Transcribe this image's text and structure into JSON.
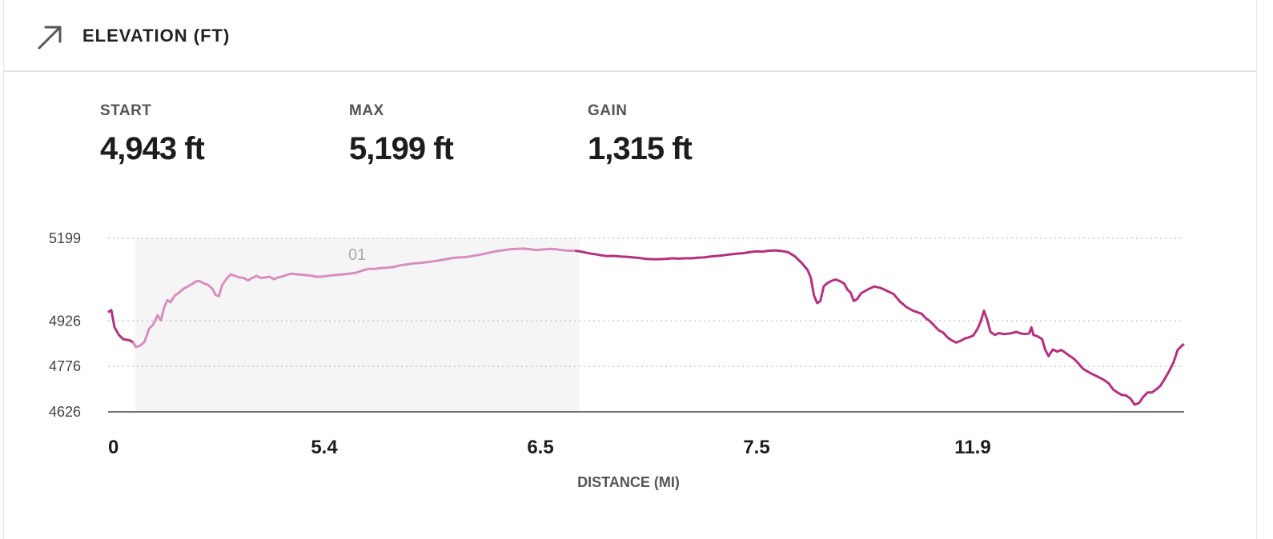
{
  "header": {
    "title": "ELEVATION (FT)",
    "icon": "arrow-up-right-icon"
  },
  "stats": [
    {
      "label": "START",
      "value": "4,943 ft"
    },
    {
      "label": "MAX",
      "value": "5,199 ft"
    },
    {
      "label": "GAIN",
      "value": "1,315 ft"
    }
  ],
  "colors": {
    "line": "#b5307f",
    "highlight": "#d98ec0",
    "band": "#f5f5f5"
  },
  "chart_data": {
    "type": "line",
    "title": "",
    "xlabel": "DISTANCE (MI)",
    "ylabel": "",
    "y_ticks": [
      5199,
      4926,
      4776,
      4626
    ],
    "x_tick_labels": [
      "0",
      "5.4",
      "6.5",
      "7.5",
      "11.9"
    ],
    "ylim": [
      4626,
      5199
    ],
    "highlighted_segment": {
      "label": "01",
      "from_fraction": 0.025,
      "to_fraction": 0.438
    },
    "grid": "dotted horizontal at y ticks",
    "series": [
      {
        "values_by_fraction": [
          [
            0.0,
            4955
          ],
          [
            0.003,
            4962
          ],
          [
            0.006,
            4905
          ],
          [
            0.01,
            4880
          ],
          [
            0.014,
            4866
          ],
          [
            0.02,
            4862
          ],
          [
            0.023,
            4856
          ],
          [
            0.026,
            4840
          ],
          [
            0.03,
            4845
          ],
          [
            0.034,
            4858
          ],
          [
            0.038,
            4900
          ],
          [
            0.042,
            4915
          ],
          [
            0.046,
            4945
          ],
          [
            0.049,
            4928
          ],
          [
            0.052,
            4970
          ],
          [
            0.055,
            4995
          ],
          [
            0.058,
            4988
          ],
          [
            0.062,
            5010
          ],
          [
            0.066,
            5020
          ],
          [
            0.07,
            5032
          ],
          [
            0.074,
            5040
          ],
          [
            0.078,
            5048
          ],
          [
            0.082,
            5057
          ],
          [
            0.085,
            5058
          ],
          [
            0.089,
            5050
          ],
          [
            0.093,
            5045
          ],
          [
            0.097,
            5032
          ],
          [
            0.1,
            5012
          ],
          [
            0.103,
            5008
          ],
          [
            0.106,
            5045
          ],
          [
            0.11,
            5065
          ],
          [
            0.114,
            5080
          ],
          [
            0.118,
            5075
          ],
          [
            0.122,
            5070
          ],
          [
            0.126,
            5068
          ],
          [
            0.13,
            5060
          ],
          [
            0.134,
            5068
          ],
          [
            0.138,
            5075
          ],
          [
            0.142,
            5068
          ],
          [
            0.146,
            5070
          ],
          [
            0.15,
            5072
          ],
          [
            0.154,
            5064
          ],
          [
            0.158,
            5070
          ],
          [
            0.162,
            5073
          ],
          [
            0.166,
            5078
          ],
          [
            0.17,
            5082
          ],
          [
            0.176,
            5080
          ],
          [
            0.182,
            5078
          ],
          [
            0.188,
            5076
          ],
          [
            0.194,
            5072
          ],
          [
            0.2,
            5073
          ],
          [
            0.206,
            5076
          ],
          [
            0.212,
            5078
          ],
          [
            0.218,
            5080
          ],
          [
            0.224,
            5082
          ],
          [
            0.23,
            5085
          ],
          [
            0.236,
            5092
          ],
          [
            0.242,
            5098
          ],
          [
            0.248,
            5098
          ],
          [
            0.254,
            5101
          ],
          [
            0.26,
            5102
          ],
          [
            0.266,
            5105
          ],
          [
            0.272,
            5110
          ],
          [
            0.278,
            5113
          ],
          [
            0.284,
            5116
          ],
          [
            0.29,
            5118
          ],
          [
            0.296,
            5120
          ],
          [
            0.302,
            5123
          ],
          [
            0.308,
            5126
          ],
          [
            0.314,
            5130
          ],
          [
            0.32,
            5134
          ],
          [
            0.326,
            5136
          ],
          [
            0.332,
            5137
          ],
          [
            0.338,
            5140
          ],
          [
            0.344,
            5144
          ],
          [
            0.35,
            5148
          ],
          [
            0.356,
            5153
          ],
          [
            0.362,
            5157
          ],
          [
            0.368,
            5160
          ],
          [
            0.374,
            5163
          ],
          [
            0.38,
            5164
          ],
          [
            0.386,
            5165
          ],
          [
            0.392,
            5163
          ],
          [
            0.398,
            5160
          ],
          [
            0.404,
            5162
          ],
          [
            0.41,
            5164
          ],
          [
            0.416,
            5163
          ],
          [
            0.422,
            5160
          ],
          [
            0.428,
            5158
          ],
          [
            0.434,
            5158
          ],
          [
            0.44,
            5155
          ],
          [
            0.446,
            5150
          ],
          [
            0.452,
            5147
          ],
          [
            0.458,
            5143
          ],
          [
            0.464,
            5140
          ],
          [
            0.47,
            5141
          ],
          [
            0.476,
            5139
          ],
          [
            0.482,
            5138
          ],
          [
            0.488,
            5136
          ],
          [
            0.494,
            5134
          ],
          [
            0.5,
            5131
          ],
          [
            0.506,
            5130
          ],
          [
            0.512,
            5130
          ],
          [
            0.518,
            5131
          ],
          [
            0.524,
            5133
          ],
          [
            0.53,
            5132
          ],
          [
            0.536,
            5133
          ],
          [
            0.542,
            5133
          ],
          [
            0.548,
            5135
          ],
          [
            0.554,
            5136
          ],
          [
            0.56,
            5139
          ],
          [
            0.566,
            5141
          ],
          [
            0.572,
            5143
          ],
          [
            0.578,
            5146
          ],
          [
            0.584,
            5148
          ],
          [
            0.59,
            5150
          ],
          [
            0.596,
            5153
          ],
          [
            0.602,
            5156
          ],
          [
            0.608,
            5155
          ],
          [
            0.614,
            5158
          ],
          [
            0.62,
            5159
          ],
          [
            0.626,
            5157
          ],
          [
            0.632,
            5153
          ],
          [
            0.638,
            5140
          ],
          [
            0.644,
            5120
          ],
          [
            0.65,
            5095
          ],
          [
            0.653,
            5070
          ],
          [
            0.656,
            5010
          ],
          [
            0.659,
            4985
          ],
          [
            0.662,
            4992
          ],
          [
            0.665,
            5040
          ],
          [
            0.668,
            5050
          ],
          [
            0.672,
            5058
          ],
          [
            0.676,
            5063
          ],
          [
            0.68,
            5058
          ],
          [
            0.684,
            5050
          ],
          [
            0.687,
            5030
          ],
          [
            0.69,
            5020
          ],
          [
            0.693,
            4992
          ],
          [
            0.696,
            4998
          ],
          [
            0.7,
            5018
          ],
          [
            0.706,
            5030
          ],
          [
            0.712,
            5040
          ],
          [
            0.718,
            5035
          ],
          [
            0.724,
            5025
          ],
          [
            0.73,
            5015
          ],
          [
            0.736,
            4990
          ],
          [
            0.742,
            4972
          ],
          [
            0.748,
            4960
          ],
          [
            0.752,
            4955
          ],
          [
            0.756,
            4950
          ],
          [
            0.76,
            4935
          ],
          [
            0.764,
            4925
          ],
          [
            0.768,
            4910
          ],
          [
            0.772,
            4895
          ],
          [
            0.776,
            4888
          ],
          [
            0.78,
            4872
          ],
          [
            0.784,
            4862
          ],
          [
            0.788,
            4855
          ],
          [
            0.792,
            4860
          ],
          [
            0.796,
            4868
          ],
          [
            0.8,
            4872
          ],
          [
            0.804,
            4878
          ],
          [
            0.808,
            4900
          ],
          [
            0.811,
            4925
          ],
          [
            0.814,
            4960
          ],
          [
            0.817,
            4930
          ],
          [
            0.82,
            4890
          ],
          [
            0.824,
            4880
          ],
          [
            0.828,
            4886
          ],
          [
            0.832,
            4883
          ],
          [
            0.836,
            4884
          ],
          [
            0.84,
            4886
          ],
          [
            0.844,
            4890
          ],
          [
            0.848,
            4885
          ],
          [
            0.852,
            4883
          ],
          [
            0.856,
            4885
          ],
          [
            0.858,
            4905
          ],
          [
            0.86,
            4880
          ],
          [
            0.864,
            4875
          ],
          [
            0.868,
            4866
          ],
          [
            0.871,
            4830
          ],
          [
            0.874,
            4810
          ],
          [
            0.878,
            4832
          ],
          [
            0.882,
            4825
          ],
          [
            0.886,
            4830
          ],
          [
            0.89,
            4820
          ],
          [
            0.894,
            4810
          ],
          [
            0.898,
            4800
          ],
          [
            0.902,
            4785
          ],
          [
            0.906,
            4768
          ],
          [
            0.91,
            4760
          ],
          [
            0.914,
            4752
          ],
          [
            0.918,
            4745
          ],
          [
            0.922,
            4738
          ],
          [
            0.926,
            4730
          ],
          [
            0.93,
            4720
          ],
          [
            0.934,
            4700
          ],
          [
            0.938,
            4690
          ],
          [
            0.942,
            4682
          ],
          [
            0.946,
            4680
          ],
          [
            0.95,
            4670
          ],
          [
            0.954,
            4650
          ],
          [
            0.958,
            4655
          ],
          [
            0.962,
            4675
          ],
          [
            0.966,
            4690
          ],
          [
            0.97,
            4690
          ],
          [
            0.974,
            4700
          ],
          [
            0.978,
            4712
          ],
          [
            0.982,
            4735
          ],
          [
            0.986,
            4760
          ],
          [
            0.99,
            4788
          ],
          [
            0.994,
            4830
          ],
          [
            0.998,
            4845
          ],
          [
            1.0,
            4850
          ]
        ]
      }
    ]
  }
}
